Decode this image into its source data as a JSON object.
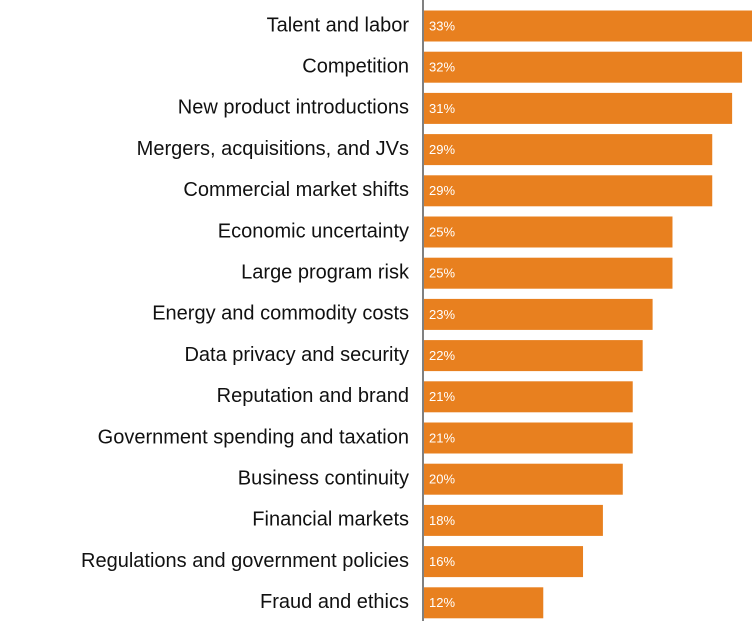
{
  "chart_data": {
    "type": "bar",
    "orientation": "horizontal",
    "categories": [
      "Talent and labor",
      "Competition",
      "New product introductions",
      "Mergers, acquisitions, and JVs",
      "Commercial market shifts",
      "Economic uncertainty",
      "Large program risk",
      "Energy and commodity costs",
      "Data privacy and security",
      "Reputation and brand",
      "Government spending and taxation",
      "Business continuity",
      "Financial markets",
      "Regulations and government policies",
      "Fraud and ethics"
    ],
    "values": [
      33,
      32,
      31,
      29,
      29,
      25,
      25,
      23,
      22,
      21,
      21,
      20,
      18,
      16,
      12
    ],
    "value_labels": [
      "33%",
      "32%",
      "31%",
      "29%",
      "29%",
      "25%",
      "25%",
      "23%",
      "22%",
      "21%",
      "21%",
      "20%",
      "18%",
      "16%",
      "12%"
    ],
    "unit": "%",
    "title": "",
    "xlabel": "",
    "ylabel": "",
    "xlim": [
      0,
      33
    ],
    "grid": false,
    "legend": "none",
    "bar_color": "#E8801F",
    "axis_color": "#000000"
  }
}
